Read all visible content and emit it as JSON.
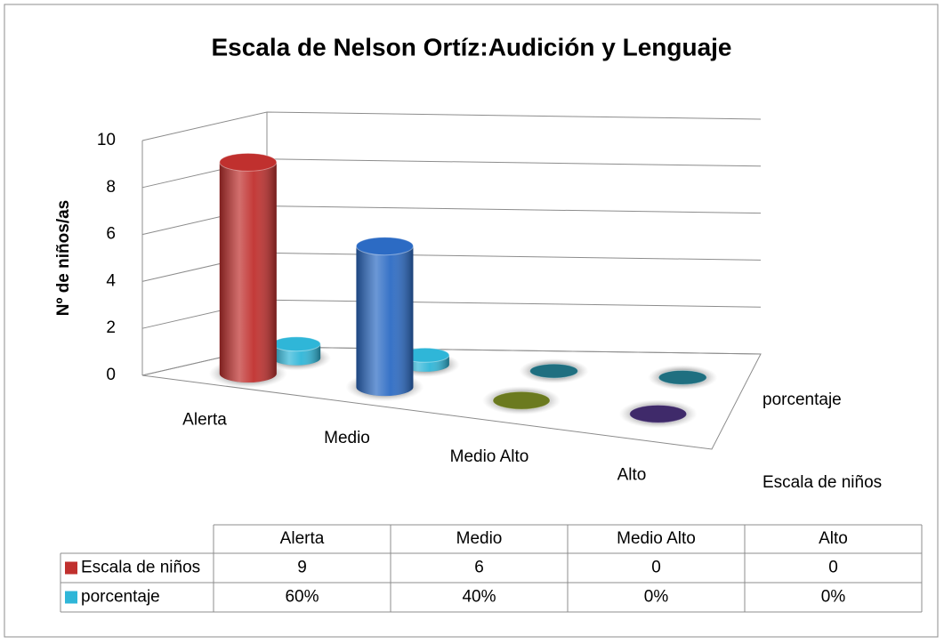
{
  "chart_data": {
    "type": "bar3d",
    "title": "Escala de Nelson Ortíz:Audición y Lenguaje",
    "y_label": "Nº de niños/as",
    "categories": [
      "Alerta",
      "Medio",
      "Medio Alto",
      "Alto"
    ],
    "series": [
      {
        "name": "Escala de niños",
        "color": "#c0302e",
        "colors": [
          "#c0302e",
          "#2c6bc4",
          "#6b7a1f",
          "#3f2a6a"
        ],
        "values": [
          9,
          6,
          0,
          0
        ]
      },
      {
        "name": "porcentaje",
        "color": "#2fb6d8",
        "colors": [
          "#2fb6d8",
          "#2fb6d8",
          "#1f6f80",
          "#1f6f80"
        ],
        "values": [
          0.6,
          0.4,
          0,
          0
        ],
        "value_labels": [
          "60%",
          "40%",
          "0%",
          "0%"
        ]
      }
    ],
    "ylim": [
      0,
      10
    ],
    "yticks": [
      0,
      2,
      4,
      6,
      8,
      10
    ],
    "grid": true,
    "data_table": true
  }
}
